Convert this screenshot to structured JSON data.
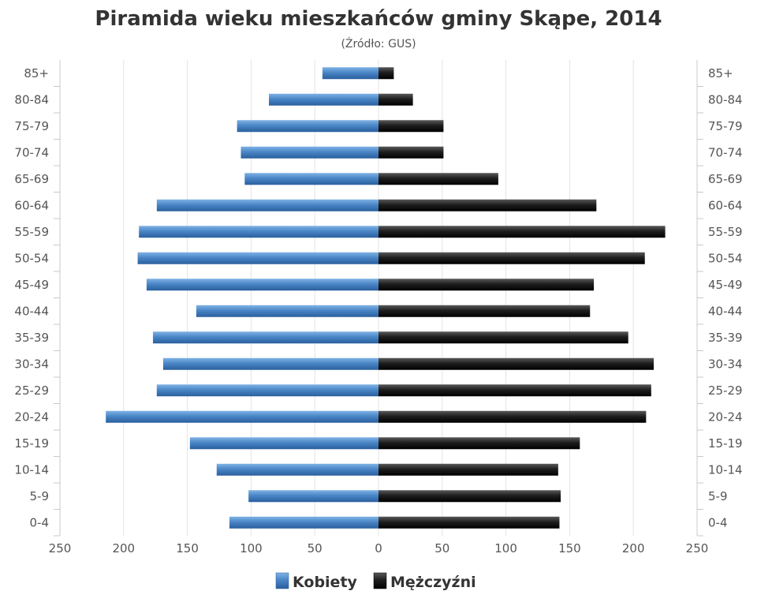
{
  "chart_data": {
    "type": "bar",
    "orientation": "horizontal",
    "layout": "population-pyramid",
    "title": "Piramida wieku mieszkańców gminy Skąpe, 2014",
    "subtitle": "(Źródło: GUS)",
    "categories": [
      "85+",
      "80-84",
      "75-79",
      "70-74",
      "65-69",
      "60-64",
      "55-59",
      "50-54",
      "45-49",
      "40-44",
      "35-39",
      "30-34",
      "25-29",
      "20-24",
      "15-19",
      "10-14",
      "5-9",
      "0-4"
    ],
    "series": [
      {
        "name": "Kobiety",
        "color": "#4a86c6",
        "side": "left",
        "values": [
          44,
          86,
          111,
          108,
          105,
          174,
          188,
          189,
          182,
          143,
          177,
          169,
          174,
          214,
          148,
          127,
          102,
          117
        ]
      },
      {
        "name": "Mężczyźni",
        "color": "#222222",
        "side": "right",
        "values": [
          12,
          27,
          51,
          51,
          94,
          171,
          225,
          209,
          169,
          166,
          196,
          216,
          214,
          210,
          158,
          141,
          143,
          142
        ]
      }
    ],
    "xlim": [
      -250,
      250
    ],
    "x_ticks": [
      "250",
      "200",
      "150",
      "100",
      "50",
      "0",
      "50",
      "100",
      "150",
      "200",
      "250"
    ],
    "grid": true,
    "legend": "bottom-center"
  }
}
